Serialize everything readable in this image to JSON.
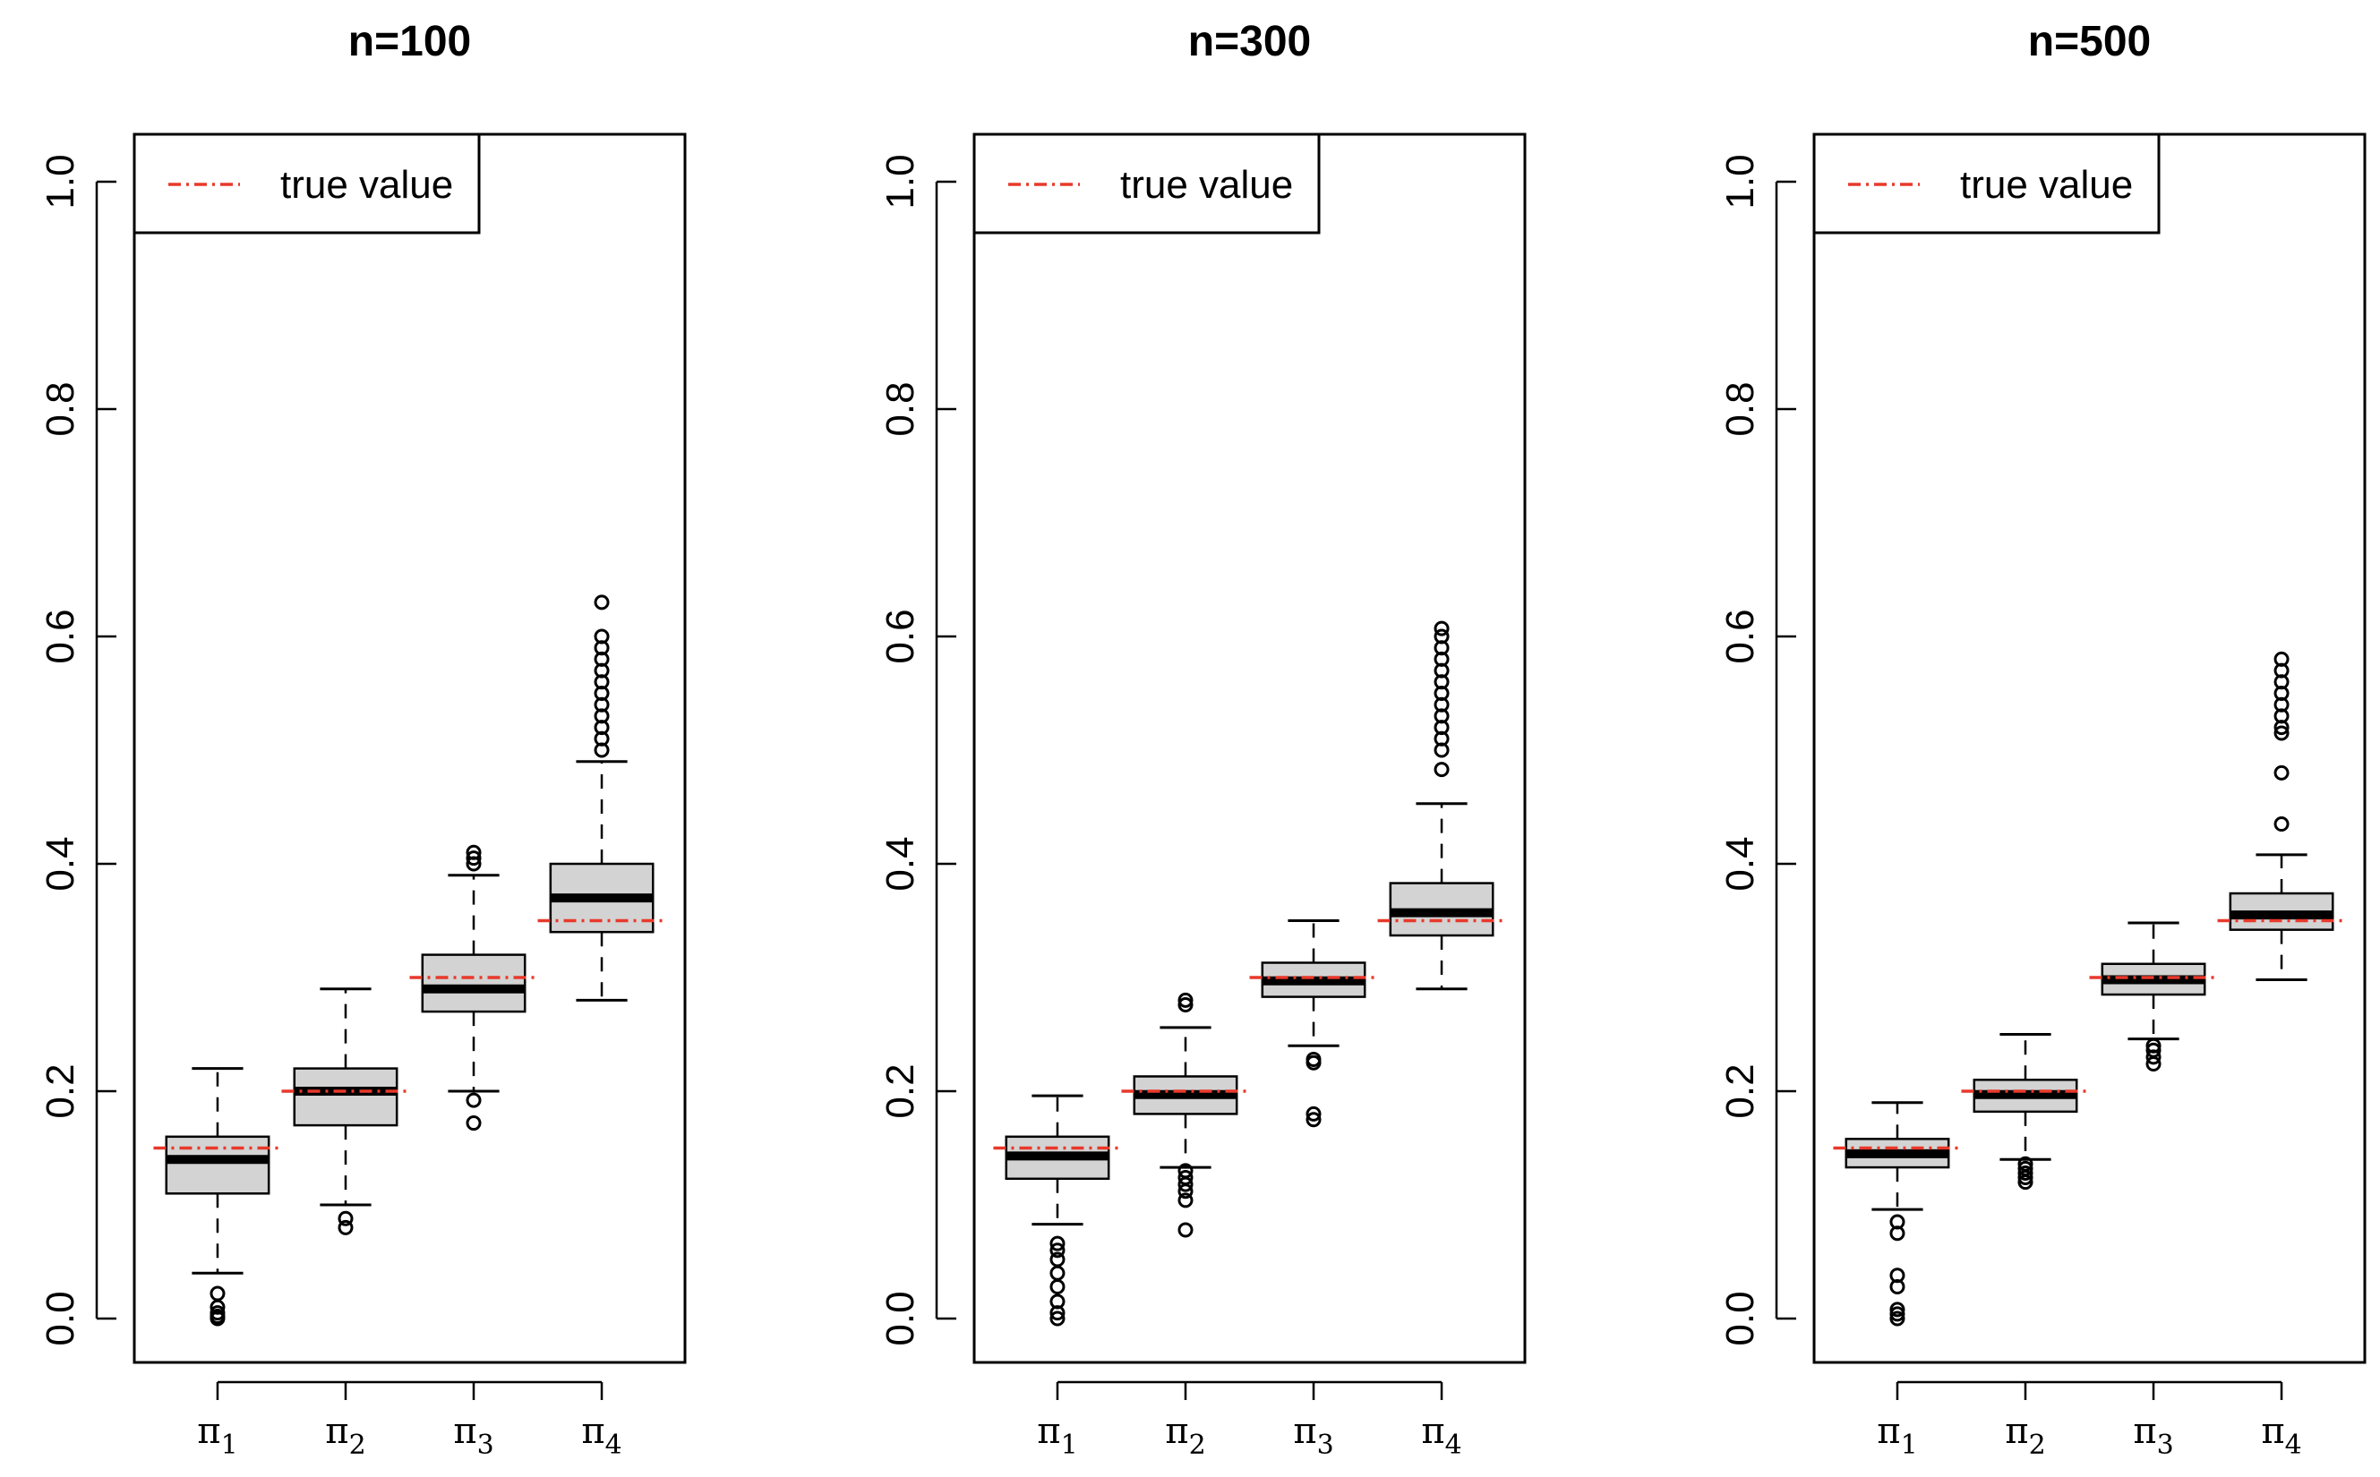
{
  "colors": {
    "true_value_line": "#e8392b",
    "box_fill": "#d3d3d3",
    "axis": "#000000"
  },
  "chart_data": [
    {
      "type": "boxplot",
      "title": "n=100",
      "categories": [
        {
          "label": "π",
          "sub": "1"
        },
        {
          "label": "π",
          "sub": "2"
        },
        {
          "label": "π",
          "sub": "3"
        },
        {
          "label": "π",
          "sub": "4"
        }
      ],
      "ylim": [
        0.0,
        1.0
      ],
      "yticks": [
        "0.0",
        "0.2",
        "0.4",
        "0.6",
        "0.8",
        "1.0"
      ],
      "legend": {
        "label": "true value",
        "position": "top-left"
      },
      "true_values": [
        0.15,
        0.2,
        0.3,
        0.35
      ],
      "boxes": [
        {
          "whisker_low": 0.04,
          "q1": 0.11,
          "median": 0.14,
          "q3": 0.16,
          "whisker_high": 0.22,
          "outliers": [
            0.0,
            0.002,
            0.005,
            0.01,
            0.022
          ]
        },
        {
          "whisker_low": 0.1,
          "q1": 0.17,
          "median": 0.2,
          "q3": 0.22,
          "whisker_high": 0.29,
          "outliers": [
            0.08,
            0.088
          ]
        },
        {
          "whisker_low": 0.2,
          "q1": 0.27,
          "median": 0.29,
          "q3": 0.32,
          "whisker_high": 0.39,
          "outliers": [
            0.172,
            0.192,
            0.4,
            0.405,
            0.41
          ]
        },
        {
          "whisker_low": 0.28,
          "q1": 0.34,
          "median": 0.37,
          "q3": 0.4,
          "whisker_high": 0.49,
          "outliers": [
            0.5,
            0.51,
            0.52,
            0.53,
            0.54,
            0.55,
            0.56,
            0.57,
            0.58,
            0.59,
            0.6,
            0.63
          ]
        }
      ]
    },
    {
      "type": "boxplot",
      "title": "n=300",
      "categories": [
        {
          "label": "π",
          "sub": "1"
        },
        {
          "label": "π",
          "sub": "2"
        },
        {
          "label": "π",
          "sub": "3"
        },
        {
          "label": "π",
          "sub": "4"
        }
      ],
      "ylim": [
        0.0,
        1.0
      ],
      "yticks": [
        "0.0",
        "0.2",
        "0.4",
        "0.6",
        "0.8",
        "1.0"
      ],
      "legend": {
        "label": "true value",
        "position": "top-left"
      },
      "true_values": [
        0.15,
        0.2,
        0.3,
        0.35
      ],
      "boxes": [
        {
          "whisker_low": 0.083,
          "q1": 0.123,
          "median": 0.143,
          "q3": 0.16,
          "whisker_high": 0.196,
          "outliers": [
            0.0,
            0.005,
            0.015,
            0.028,
            0.04,
            0.052,
            0.06,
            0.066
          ]
        },
        {
          "whisker_low": 0.133,
          "q1": 0.18,
          "median": 0.197,
          "q3": 0.213,
          "whisker_high": 0.256,
          "outliers": [
            0.078,
            0.104,
            0.112,
            0.118,
            0.124,
            0.13,
            0.276,
            0.28
          ]
        },
        {
          "whisker_low": 0.24,
          "q1": 0.283,
          "median": 0.297,
          "q3": 0.313,
          "whisker_high": 0.35,
          "outliers": [
            0.175,
            0.18,
            0.225,
            0.228
          ]
        },
        {
          "whisker_low": 0.29,
          "q1": 0.337,
          "median": 0.357,
          "q3": 0.383,
          "whisker_high": 0.453,
          "outliers": [
            0.483,
            0.5,
            0.51,
            0.52,
            0.53,
            0.54,
            0.55,
            0.56,
            0.57,
            0.58,
            0.59,
            0.6,
            0.607
          ]
        }
      ]
    },
    {
      "type": "boxplot",
      "title": "n=500",
      "categories": [
        {
          "label": "π",
          "sub": "1"
        },
        {
          "label": "π",
          "sub": "2"
        },
        {
          "label": "π",
          "sub": "3"
        },
        {
          "label": "π",
          "sub": "4"
        }
      ],
      "ylim": [
        0.0,
        1.0
      ],
      "yticks": [
        "0.0",
        "0.2",
        "0.4",
        "0.6",
        "0.8",
        "1.0"
      ],
      "legend": {
        "label": "true value",
        "position": "top-left"
      },
      "true_values": [
        0.15,
        0.2,
        0.3,
        0.35
      ],
      "boxes": [
        {
          "whisker_low": 0.096,
          "q1": 0.133,
          "median": 0.145,
          "q3": 0.158,
          "whisker_high": 0.19,
          "outliers": [
            0.0,
            0.004,
            0.008,
            0.028,
            0.038,
            0.075,
            0.085
          ]
        },
        {
          "whisker_low": 0.14,
          "q1": 0.182,
          "median": 0.197,
          "q3": 0.21,
          "whisker_high": 0.25,
          "outliers": [
            0.12,
            0.124,
            0.128,
            0.132,
            0.136
          ]
        },
        {
          "whisker_low": 0.246,
          "q1": 0.285,
          "median": 0.298,
          "q3": 0.312,
          "whisker_high": 0.348,
          "outliers": [
            0.224,
            0.23,
            0.236,
            0.24
          ]
        },
        {
          "whisker_low": 0.298,
          "q1": 0.342,
          "median": 0.355,
          "q3": 0.374,
          "whisker_high": 0.408,
          "outliers": [
            0.435,
            0.48,
            0.515,
            0.52,
            0.53,
            0.54,
            0.55,
            0.56,
            0.57,
            0.58
          ]
        }
      ]
    }
  ]
}
